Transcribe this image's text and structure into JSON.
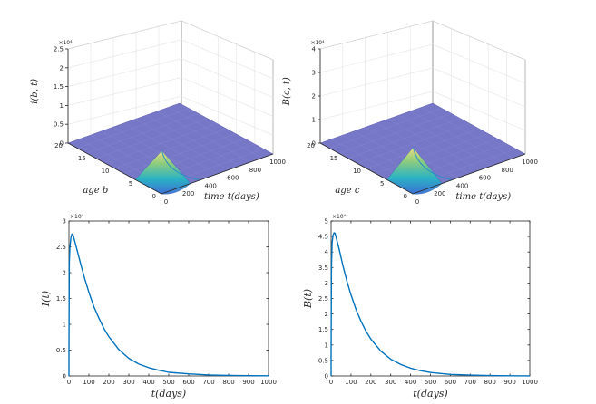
{
  "chart_data": [
    {
      "type": "surface",
      "panel": "top-left",
      "zlabel": "i(b, t)",
      "xlabel": "time t(days)",
      "ylabel": "age b",
      "exponent": "×10⁴",
      "zticks": [
        "0",
        "0.5",
        "1",
        "1.5",
        "2",
        "2.5"
      ],
      "zlim": [
        0,
        2.5
      ],
      "xticks": [
        "0",
        "200",
        "400",
        "600",
        "800",
        "1000"
      ],
      "xlim": [
        0,
        1000
      ],
      "yticks": [
        "0",
        "5",
        "10",
        "15",
        "20"
      ],
      "ylim": [
        0,
        20
      ],
      "peak_value": 1.1,
      "peak_time": 20,
      "surface_color": "#7777c8",
      "peak_color": "#f0e07a"
    },
    {
      "type": "surface",
      "panel": "top-right",
      "zlabel": "B(c, t)",
      "xlabel": "time t(days)",
      "ylabel": "age c",
      "exponent": "×10⁴",
      "zticks": [
        "0",
        "1",
        "2",
        "3",
        "4"
      ],
      "zlim": [
        0,
        4
      ],
      "xticks": [
        "0",
        "200",
        "400",
        "600",
        "800",
        "1000"
      ],
      "xlim": [
        0,
        1000
      ],
      "yticks": [
        "0",
        "5",
        "10",
        "15",
        "20"
      ],
      "ylim": [
        0,
        20
      ],
      "peak_value": 1.9,
      "peak_time": 20,
      "surface_color": "#7777c8",
      "peak_color": "#f0e07a"
    },
    {
      "type": "line",
      "panel": "bottom-left",
      "ylabel": "I(t)",
      "xlabel": "t(days)",
      "exponent": "×10⁴",
      "xticks": [
        "0",
        "100",
        "200",
        "300",
        "400",
        "500",
        "600",
        "700",
        "800",
        "900",
        "1000"
      ],
      "yticks": [
        "0",
        "0.5",
        "1",
        "1.5",
        "2",
        "2.5",
        "3"
      ],
      "xlim": [
        0,
        1000
      ],
      "ylim": [
        0,
        3
      ],
      "series": [
        {
          "name": "I(t)",
          "color": "#0072bd",
          "x": [
            0,
            2,
            5,
            10,
            15,
            20,
            40,
            60,
            80,
            100,
            125,
            150,
            175,
            200,
            250,
            300,
            350,
            400,
            450,
            500,
            600,
            700,
            800,
            900,
            1000
          ],
          "y": [
            0.5,
            2.2,
            2.5,
            2.68,
            2.75,
            2.74,
            2.45,
            2.15,
            1.87,
            1.62,
            1.34,
            1.12,
            0.92,
            0.76,
            0.51,
            0.34,
            0.23,
            0.16,
            0.11,
            0.07,
            0.04,
            0.02,
            0.01,
            0.005,
            0.003
          ]
        }
      ]
    },
    {
      "type": "line",
      "panel": "bottom-right",
      "ylabel": "B(t)",
      "xlabel": "t(days)",
      "exponent": "×10⁴",
      "xticks": [
        "0",
        "100",
        "200",
        "300",
        "400",
        "500",
        "600",
        "700",
        "800",
        "900",
        "1000"
      ],
      "yticks": [
        "0",
        "0.5",
        "1",
        "1.5",
        "2",
        "2.5",
        "3",
        "3.5",
        "4",
        "4.5",
        "5"
      ],
      "xlim": [
        0,
        1000
      ],
      "ylim": [
        0,
        5
      ],
      "series": [
        {
          "name": "B(t)",
          "color": "#0072bd",
          "x": [
            0,
            2,
            5,
            10,
            15,
            20,
            40,
            60,
            80,
            100,
            125,
            150,
            175,
            200,
            250,
            300,
            350,
            400,
            450,
            500,
            600,
            700,
            800,
            900,
            1000
          ],
          "y": [
            0.6,
            3.5,
            4.3,
            4.55,
            4.62,
            4.6,
            4.1,
            3.55,
            3.05,
            2.62,
            2.15,
            1.77,
            1.45,
            1.19,
            0.8,
            0.54,
            0.37,
            0.25,
            0.17,
            0.11,
            0.05,
            0.025,
            0.012,
            0.006,
            0.003
          ]
        }
      ]
    }
  ]
}
